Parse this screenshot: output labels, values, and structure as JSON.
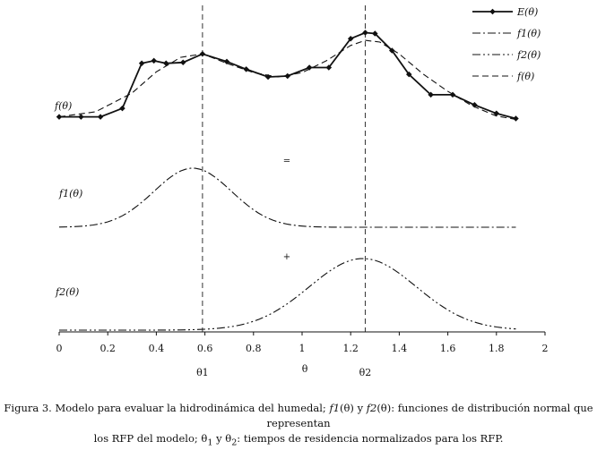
{
  "chart_data": {
    "type": "line",
    "xlabel": "θ",
    "xlim": [
      0,
      2
    ],
    "x_ticks": [
      "0",
      "0.2",
      "0.4",
      "0.6",
      "0.8",
      "1",
      "1.2",
      "1.4",
      "1.6",
      "1.8",
      "2"
    ],
    "vlines": [
      {
        "label": "θ1",
        "x": 0.59
      },
      {
        "label": "θ2",
        "x": 1.26
      }
    ],
    "panels": [
      {
        "label": "f(θ)",
        "series": [
          {
            "name": "E(θ)",
            "style": "solid-markers",
            "x": [
              0,
              0.09,
              0.17,
              0.26,
              0.34,
              0.39,
              0.44,
              0.51,
              0.59,
              0.69,
              0.77,
              0.86,
              0.94,
              1.03,
              1.11,
              1.2,
              1.26,
              1.3,
              1.37,
              1.44,
              1.53,
              1.62,
              1.71,
              1.8,
              1.88
            ],
            "y": [
              0.12,
              0.12,
              0.12,
              0.22,
              0.75,
              0.78,
              0.75,
              0.76,
              0.86,
              0.77,
              0.68,
              0.59,
              0.6,
              0.7,
              0.7,
              1.04,
              1.11,
              1.1,
              0.9,
              0.62,
              0.38,
              0.38,
              0.26,
              0.16,
              0.1
            ]
          },
          {
            "name": "f(θ)",
            "style": "dashed",
            "x": [
              0,
              0.15,
              0.3,
              0.4,
              0.5,
              0.59,
              0.7,
              0.8,
              0.9,
              1.0,
              1.1,
              1.2,
              1.26,
              1.32,
              1.4,
              1.5,
              1.6,
              1.7,
              1.8,
              1.88
            ],
            "y": [
              0.12,
              0.18,
              0.4,
              0.65,
              0.82,
              0.86,
              0.74,
              0.64,
              0.59,
              0.64,
              0.78,
              0.96,
              1.02,
              1.0,
              0.86,
              0.62,
              0.42,
              0.25,
              0.13,
              0.09
            ]
          }
        ]
      },
      {
        "label": "f1(θ)",
        "operator": "=",
        "series": [
          {
            "name": "f1(θ)",
            "style": "dash-dot",
            "mu": 0.55,
            "sigma": 0.16,
            "peak": 1.0
          }
        ]
      },
      {
        "label": "f2(θ)",
        "operator": "+",
        "series": [
          {
            "name": "f2(θ)",
            "style": "dash-dot-dot",
            "mu": 1.25,
            "sigma": 0.22,
            "peak": 1.0
          }
        ]
      }
    ],
    "legend": {
      "placement": "top-right",
      "entries": [
        {
          "name": "E(θ)",
          "style": "solid-markers"
        },
        {
          "name": "f1(θ)",
          "style": "dash-dot"
        },
        {
          "name": "f2(θ)",
          "style": "dash-dot-dot"
        },
        {
          "name": "f(θ)",
          "style": "dashed"
        }
      ]
    }
  },
  "caption": {
    "line1_a": "Figura 3. Modelo para evaluar la hidrodinámica del humedal; ",
    "f1": "f1",
    "line1_b": "(θ) y ",
    "f2": "f2",
    "line1_c": "(θ): funciones de distribución normal que representan",
    "line2_a": "los RFP del modelo; θ",
    "sub1": "1",
    "line2_b": " y θ",
    "sub2": "2",
    "line2_c": ": tiempos de residencia normalizados para los RFP."
  }
}
